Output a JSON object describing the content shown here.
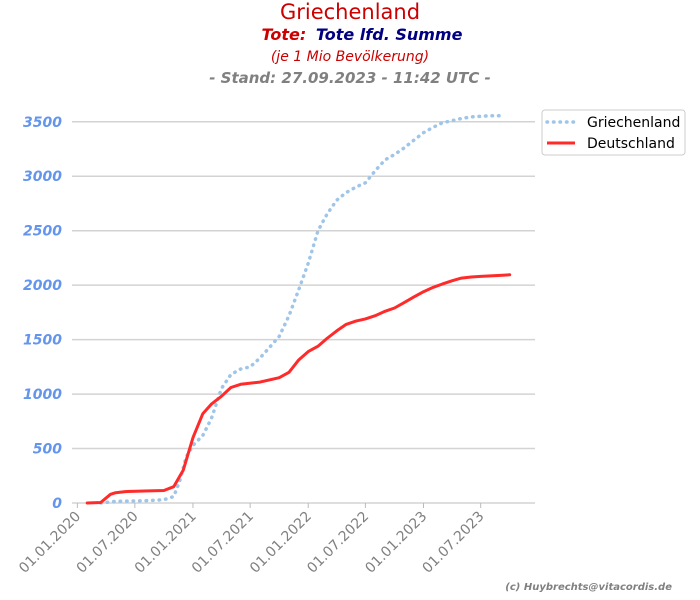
{
  "chart_data": {
    "type": "line",
    "title": "Griechenland",
    "subtitle_prefix": "Tote:",
    "subtitle_main": "Tote lfd. Summe",
    "subtitle_unit": "(je 1 Mio Bevölkerung)",
    "subtitle_stand": "- Stand: 27.09.2023 - 11:42 UTC -",
    "credit": "(c) Huybrechts@vitacordis.de",
    "xlabel": "",
    "ylabel": "",
    "ylim": [
      0,
      3700
    ],
    "xlim": [
      "2019-12-15",
      "2023-12-20"
    ],
    "y_ticks": [
      "0",
      "500",
      "1000",
      "1500",
      "2000",
      "2500",
      "3000",
      "3500"
    ],
    "x_ticks": [
      "01.01.2020",
      "01.07.2020",
      "01.01.2021",
      "01.07.2021",
      "01.01.2022",
      "01.07.2022",
      "01.01.2023",
      "01.07.2023"
    ],
    "grid": "horizontal",
    "legend_position": "top-right",
    "colors": {
      "title": "#cc0000",
      "subtitle_prefix": "#cc0000",
      "subtitle_main": "#000080",
      "subtitle_unit": "#cc0000",
      "stand": "#808080",
      "ytick": "#6495ed",
      "xtick": "#808080",
      "grid": "#d3d3d3",
      "credit": "#808080"
    },
    "series": [
      {
        "name": "Griechenland",
        "color": "#9fc5e8",
        "style": "dotted",
        "points": [
          [
            "2020-03-15",
            0
          ],
          [
            "2020-05-01",
            15
          ],
          [
            "2020-08-01",
            20
          ],
          [
            "2020-10-01",
            30
          ],
          [
            "2020-11-01",
            60
          ],
          [
            "2020-11-20",
            200
          ],
          [
            "2020-12-10",
            420
          ],
          [
            "2021-01-01",
            530
          ],
          [
            "2021-02-01",
            620
          ],
          [
            "2021-03-01",
            780
          ],
          [
            "2021-04-01",
            1050
          ],
          [
            "2021-05-01",
            1180
          ],
          [
            "2021-06-01",
            1230
          ],
          [
            "2021-07-01",
            1250
          ],
          [
            "2021-08-01",
            1330
          ],
          [
            "2021-09-01",
            1430
          ],
          [
            "2021-10-01",
            1530
          ],
          [
            "2021-11-01",
            1720
          ],
          [
            "2021-12-01",
            1950
          ],
          [
            "2022-01-01",
            2200
          ],
          [
            "2022-02-01",
            2500
          ],
          [
            "2022-03-01",
            2650
          ],
          [
            "2022-04-01",
            2780
          ],
          [
            "2022-05-01",
            2850
          ],
          [
            "2022-06-01",
            2900
          ],
          [
            "2022-07-01",
            2940
          ],
          [
            "2022-08-01",
            3050
          ],
          [
            "2022-09-01",
            3150
          ],
          [
            "2022-10-01",
            3200
          ],
          [
            "2022-11-01",
            3260
          ],
          [
            "2022-12-01",
            3330
          ],
          [
            "2023-01-01",
            3400
          ],
          [
            "2023-02-01",
            3450
          ],
          [
            "2023-03-01",
            3490
          ],
          [
            "2023-04-01",
            3510
          ],
          [
            "2023-05-01",
            3530
          ],
          [
            "2023-06-01",
            3545
          ],
          [
            "2023-07-01",
            3550
          ],
          [
            "2023-08-01",
            3555
          ],
          [
            "2023-09-15",
            3555
          ]
        ]
      },
      {
        "name": "Deutschland",
        "color": "#ff2a2a",
        "style": "solid",
        "points": [
          [
            "2020-02-01",
            0
          ],
          [
            "2020-03-15",
            5
          ],
          [
            "2020-04-15",
            80
          ],
          [
            "2020-05-01",
            95
          ],
          [
            "2020-06-01",
            105
          ],
          [
            "2020-08-01",
            110
          ],
          [
            "2020-10-01",
            115
          ],
          [
            "2020-11-01",
            150
          ],
          [
            "2020-12-01",
            300
          ],
          [
            "2021-01-01",
            600
          ],
          [
            "2021-02-01",
            820
          ],
          [
            "2021-03-01",
            910
          ],
          [
            "2021-04-01",
            980
          ],
          [
            "2021-05-01",
            1060
          ],
          [
            "2021-06-01",
            1090
          ],
          [
            "2021-08-01",
            1110
          ],
          [
            "2021-10-01",
            1150
          ],
          [
            "2021-11-01",
            1200
          ],
          [
            "2021-12-01",
            1310
          ],
          [
            "2022-01-01",
            1390
          ],
          [
            "2022-02-01",
            1440
          ],
          [
            "2022-03-01",
            1510
          ],
          [
            "2022-04-01",
            1580
          ],
          [
            "2022-05-01",
            1640
          ],
          [
            "2022-06-01",
            1670
          ],
          [
            "2022-07-01",
            1690
          ],
          [
            "2022-08-01",
            1720
          ],
          [
            "2022-09-01",
            1760
          ],
          [
            "2022-10-01",
            1790
          ],
          [
            "2022-11-01",
            1840
          ],
          [
            "2022-12-01",
            1890
          ],
          [
            "2023-01-01",
            1940
          ],
          [
            "2023-02-01",
            1980
          ],
          [
            "2023-03-01",
            2010
          ],
          [
            "2023-04-01",
            2040
          ],
          [
            "2023-05-01",
            2065
          ],
          [
            "2023-06-01",
            2075
          ],
          [
            "2023-07-01",
            2080
          ],
          [
            "2023-08-01",
            2085
          ],
          [
            "2023-09-01",
            2090
          ],
          [
            "2023-10-01",
            2095
          ]
        ]
      }
    ]
  }
}
